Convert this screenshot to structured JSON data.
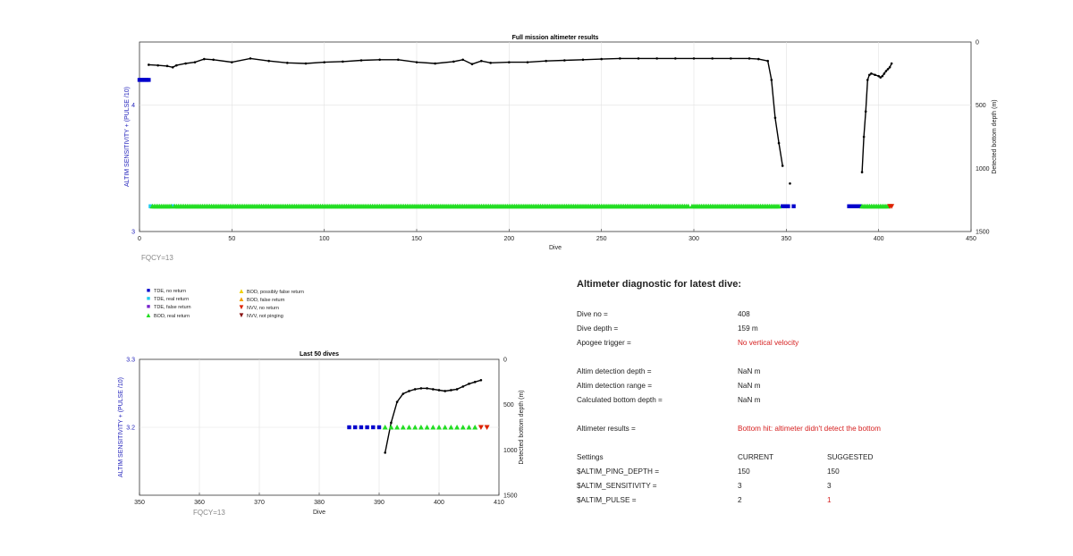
{
  "chart_data": [
    {
      "type": "line",
      "title": "Full mission altimeter results",
      "xlabel": "Dive",
      "ylabel_left": "ALTIM SENSITIVITY + (PULSE /10)",
      "ylabel_right": "Detected bottom depth (m)",
      "xlim": [
        0,
        450
      ],
      "ylim_left": [
        3,
        4.5
      ],
      "ylim_right": [
        1500,
        0
      ],
      "x_ticks": [
        0,
        50,
        100,
        150,
        200,
        250,
        300,
        350,
        400,
        450
      ],
      "y_ticks_left": [
        3,
        4
      ],
      "y_ticks_right": [
        0,
        500,
        1000,
        1500
      ],
      "grid": true,
      "annotation": "FQCY=13",
      "series": [
        {
          "name": "Detected bottom depth",
          "axis": "right",
          "color": "#000000",
          "x": [
            5,
            10,
            15,
            18,
            20,
            25,
            30,
            35,
            40,
            50,
            60,
            70,
            80,
            90,
            100,
            110,
            120,
            130,
            140,
            150,
            160,
            170,
            175,
            180,
            185,
            190,
            200,
            210,
            220,
            230,
            240,
            250,
            260,
            270,
            280,
            290,
            300,
            310,
            320,
            330,
            335,
            340,
            342,
            344,
            346,
            348
          ],
          "y": [
            180,
            185,
            190,
            200,
            185,
            170,
            160,
            135,
            140,
            160,
            130,
            150,
            165,
            170,
            160,
            155,
            145,
            140,
            140,
            160,
            170,
            155,
            140,
            175,
            150,
            165,
            160,
            160,
            150,
            145,
            140,
            135,
            130,
            130,
            130,
            130,
            130,
            130,
            130,
            130,
            135,
            150,
            300,
            600,
            800,
            980
          ]
        },
        {
          "name": "Detected bottom depth (isolated)",
          "axis": "right",
          "color": "#000000",
          "x": [
            352
          ],
          "y": [
            1120
          ]
        },
        {
          "name": "Detected bottom depth (recent)",
          "axis": "right",
          "color": "#000000",
          "x": [
            391,
            392,
            393,
            394,
            395,
            396,
            398,
            400,
            401,
            402,
            403,
            404,
            405,
            406,
            407
          ],
          "y": [
            1030,
            750,
            550,
            300,
            260,
            250,
            260,
            270,
            280,
            270,
            250,
            230,
            215,
            200,
            170
          ]
        },
        {
          "name": "TDE, no return",
          "axis": "left",
          "color": "#0000cc",
          "marker": "square",
          "x": [
            0,
            1,
            2,
            3,
            4,
            5,
            348,
            349,
            350,
            351,
            354,
            384,
            385,
            386,
            387,
            388,
            389,
            390
          ],
          "y": [
            4.2,
            4.2,
            4.2,
            4.2,
            4.2,
            4.2,
            3.2,
            3.2,
            3.2,
            3.2,
            3.2,
            3.2,
            3.2,
            3.2,
            3.2,
            3.2,
            3.2,
            3.2
          ]
        },
        {
          "name": "TDE, real return",
          "axis": "left",
          "color": "#22ccee",
          "marker": "square",
          "x": [
            6,
            18
          ],
          "y": [
            3.2,
            3.2
          ]
        },
        {
          "name": "BOD, real return",
          "axis": "left",
          "color": "#22dd22",
          "marker": "triangle-up",
          "x_range": [
            [
              7,
              17
            ],
            [
              19,
              297
            ],
            [
              299,
              346
            ],
            [
              391,
              405
            ]
          ],
          "y": 3.2
        },
        {
          "name": "NVV, no return",
          "axis": "left",
          "color": "#dd2200",
          "marker": "triangle-down",
          "x": [
            406,
            407
          ],
          "y": [
            3.2,
            3.2
          ]
        }
      ]
    },
    {
      "type": "line",
      "title": "Last 50 dives",
      "xlabel": "Dive",
      "ylabel_left": "ALTIM SENSITIVITY + (PULSE /10)",
      "ylabel_right": "Detected bottom depth (m)",
      "xlim": [
        350,
        410
      ],
      "ylim_left": [
        3.1,
        3.3
      ],
      "ylim_right": [
        1500,
        0
      ],
      "x_ticks": [
        350,
        360,
        370,
        380,
        390,
        400,
        410
      ],
      "y_ticks_left": [
        3.2,
        3.3
      ],
      "y_ticks_right": [
        0,
        500,
        1000,
        1500
      ],
      "grid": true,
      "annotation": "FQCY=13",
      "series": [
        {
          "name": "Detected bottom depth",
          "axis": "right",
          "color": "#000000",
          "x": [
            391,
            392,
            393,
            394,
            395,
            396,
            397,
            398,
            399,
            400,
            401,
            402,
            403,
            404,
            405,
            406,
            407
          ],
          "y": [
            1030,
            700,
            470,
            380,
            350,
            330,
            320,
            320,
            330,
            340,
            350,
            340,
            330,
            300,
            270,
            250,
            230
          ]
        },
        {
          "name": "TDE, no return",
          "axis": "left",
          "color": "#0000cc",
          "marker": "square",
          "x": [
            385,
            386,
            387,
            388,
            389,
            390
          ],
          "y": [
            3.2,
            3.2,
            3.2,
            3.2,
            3.2,
            3.2
          ]
        },
        {
          "name": "BOD, real return",
          "axis": "left",
          "color": "#22dd22",
          "marker": "triangle-up",
          "x": [
            391,
            392,
            393,
            394,
            395,
            396,
            397,
            398,
            399,
            400,
            401,
            402,
            403,
            404,
            405,
            406
          ],
          "y": [
            3.2,
            3.2,
            3.2,
            3.2,
            3.2,
            3.2,
            3.2,
            3.2,
            3.2,
            3.2,
            3.2,
            3.2,
            3.2,
            3.2,
            3.2,
            3.2
          ]
        },
        {
          "name": "NVV, no return",
          "axis": "left",
          "color": "#dd2200",
          "marker": "triangle-down",
          "x": [
            407,
            408
          ],
          "y": [
            3.2,
            3.2
          ]
        }
      ]
    }
  ],
  "legend": [
    {
      "symbol": "■",
      "color": "#0000cc",
      "label": "TDE, no return"
    },
    {
      "symbol": "■",
      "color": "#22ccee",
      "label": "TDE, real return"
    },
    {
      "symbol": "■",
      "color": "#7722cc",
      "label": "TDE, false return"
    },
    {
      "symbol": "▲",
      "color": "#22dd22",
      "label": "BOD, real return"
    },
    {
      "symbol": "▲",
      "color": "#f0d000",
      "label": "BOD, possibly false return"
    },
    {
      "symbol": "▲",
      "color": "#f0a000",
      "label": "BOD, false return"
    },
    {
      "symbol": "▼",
      "color": "#dd2200",
      "label": "NVV, no return"
    },
    {
      "symbol": "▼",
      "color": "#881111",
      "label": "NVV, not pinging"
    }
  ],
  "diagnostic": {
    "title": "Altimeter diagnostic for latest dive:",
    "dive_no_label": "Dive no =",
    "dive_no_value": "408",
    "dive_depth_label": "Dive depth =",
    "dive_depth_value": "159 m",
    "apogee_label": "Apogee trigger =",
    "apogee_value": "No vertical velocity",
    "det_depth_label": "Altim detection depth =",
    "det_depth_value": "NaN m",
    "det_range_label": "Altim detection range =",
    "det_range_value": "NaN m",
    "calc_depth_label": "Calculated bottom depth =",
    "calc_depth_value": "NaN m",
    "results_label": "Altimeter results =",
    "results_value": "Bottom hit: altimeter didn't detect the bottom",
    "settings_label": "Settings",
    "current_header": "CURRENT",
    "suggested_header": "SUGGESTED",
    "settings": [
      {
        "name": "$ALTIM_PING_DEPTH =",
        "current": "150",
        "suggested": "150",
        "changed": false
      },
      {
        "name": "$ALTIM_SENSITIVITY =",
        "current": "3",
        "suggested": "3",
        "changed": false
      },
      {
        "name": "$ALTIM_PULSE =",
        "current": "2",
        "suggested": "1",
        "changed": true
      }
    ]
  }
}
